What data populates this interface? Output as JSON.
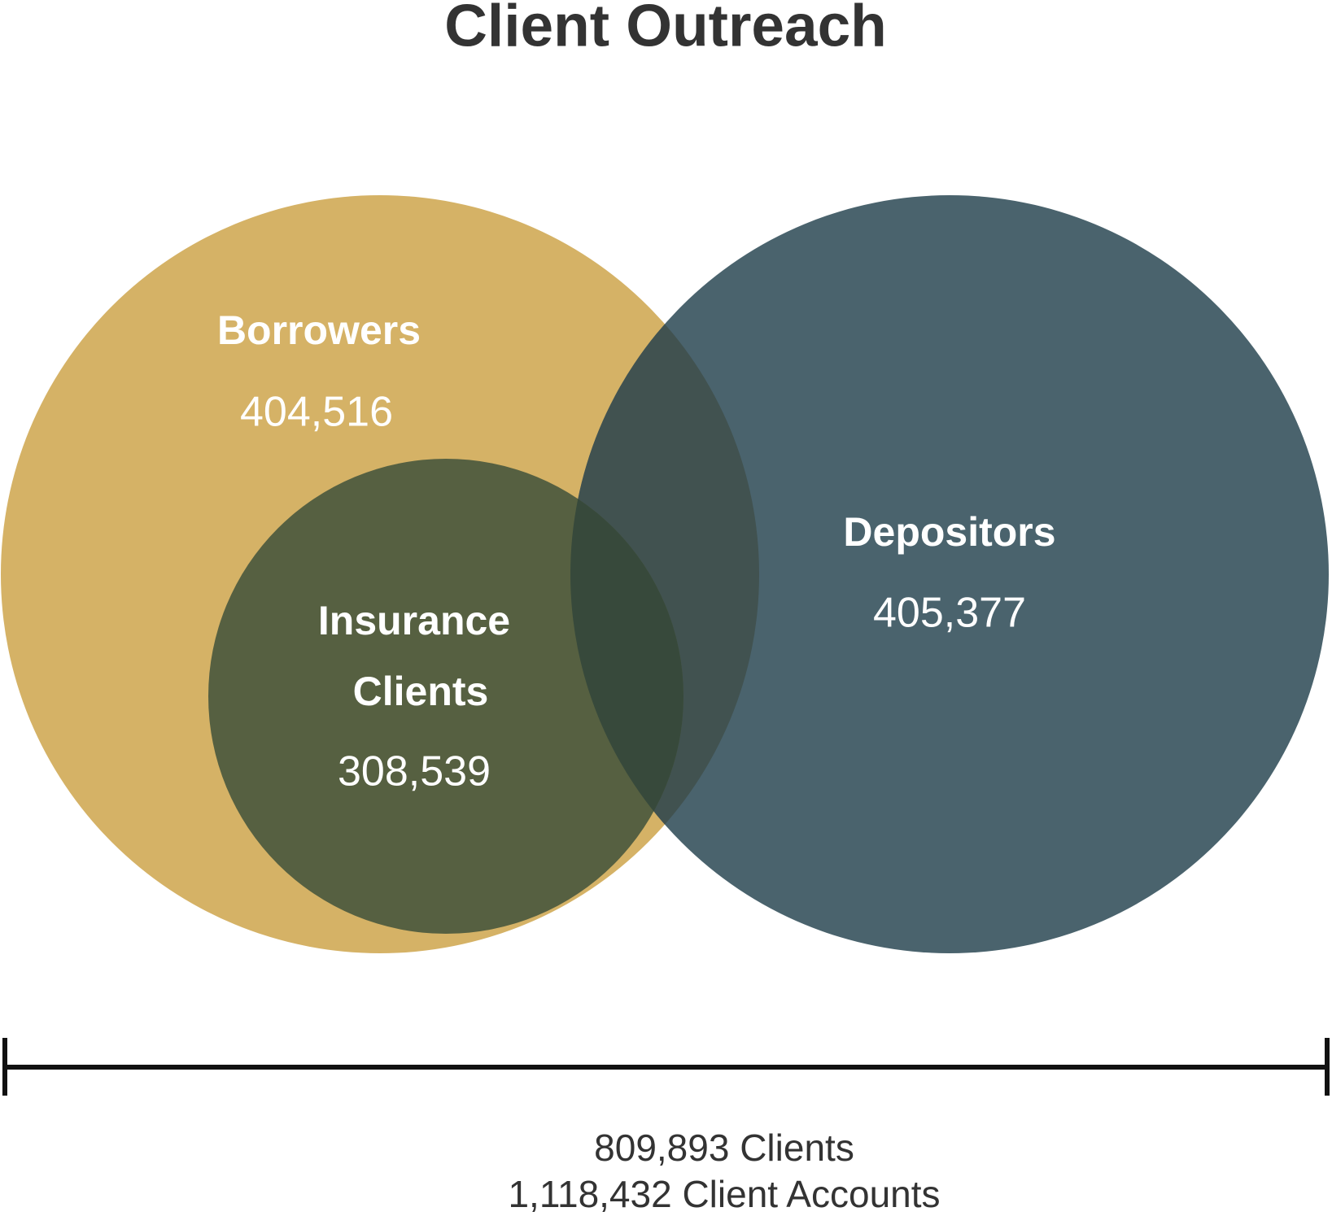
{
  "title": "Client Outreach",
  "sets": [
    {
      "label": [
        "Borrowers"
      ],
      "value": "404,516"
    },
    {
      "label": [
        "Depositors"
      ],
      "value": "405,377"
    },
    {
      "label": [
        "Insurance",
        "Clients"
      ],
      "value": "308,539"
    }
  ],
  "footer": [
    "809,893 Clients",
    "1,118,432 Client Accounts"
  ]
}
